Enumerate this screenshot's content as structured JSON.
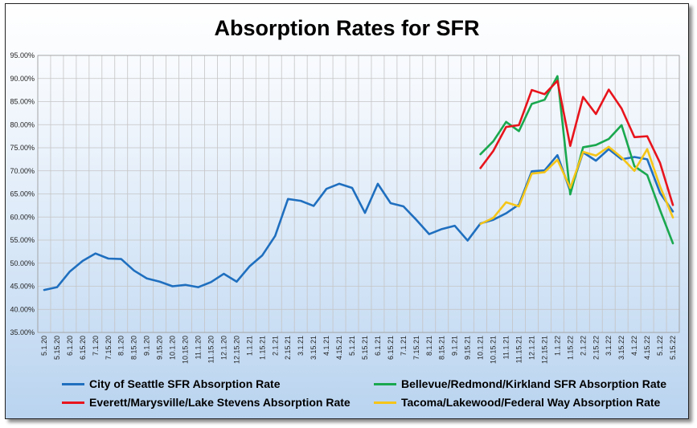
{
  "chart_data": {
    "type": "line",
    "title": "Absorption Rates for SFR",
    "xlabel": "",
    "ylabel": "",
    "ylim": [
      35,
      95
    ],
    "y_ticks": [
      "35.00%",
      "40.00%",
      "45.00%",
      "50.00%",
      "55.00%",
      "60.00%",
      "65.00%",
      "70.00%",
      "75.00%",
      "80.00%",
      "85.00%",
      "90.00%",
      "95.00%"
    ],
    "grid": true,
    "legend_position": "bottom",
    "categories": [
      "5.1.20",
      "5.15.20",
      "6.1.20",
      "6.15.20",
      "7.1.20",
      "7.15.20",
      "8.1.20",
      "8.15.20",
      "9.1.20",
      "9.15.20",
      "10.1.20",
      "10.15.20",
      "11.1.20",
      "11.15.20",
      "12.1.20",
      "12.15.20",
      "1.1.21",
      "1.15.21",
      "2.1.21",
      "2.15.21",
      "3.1.21",
      "3.15.21",
      "4.1.21",
      "4.15.21",
      "5.1.21",
      "5.15.21",
      "6.1.21",
      "6.15.21",
      "7.1.21",
      "7.15.21",
      "8.1.21",
      "8.15.21",
      "9.1.21",
      "9.15.21",
      "10.1.21",
      "10.15.21",
      "11.1.21",
      "11.15.21",
      "12.1.21",
      "12.15.21",
      "1.1.22",
      "1.15.22",
      "2.1.22",
      "2.15.22",
      "3.1.22",
      "3.15.22",
      "4.1.22",
      "4.15.22",
      "5.1.22",
      "5.15.22"
    ],
    "series": [
      {
        "name": "City of Seattle SFR Absorption Rate",
        "color": "#1f6fbf",
        "values": [
          44.2,
          44.8,
          48.2,
          50.5,
          52.1,
          51.0,
          50.9,
          48.4,
          46.7,
          46.0,
          45.0,
          45.3,
          44.8,
          45.9,
          47.7,
          46.0,
          49.3,
          51.7,
          55.9,
          63.9,
          63.5,
          62.4,
          66.1,
          67.2,
          66.3,
          60.9,
          67.2,
          63.0,
          62.3,
          59.4,
          56.3,
          57.4,
          58.1,
          54.9,
          58.6,
          59.4,
          60.8,
          62.7,
          69.9,
          70.1,
          73.4,
          65.6,
          74.0,
          72.2,
          74.7,
          72.5,
          73.0,
          72.5,
          65.2,
          61.2
        ]
      },
      {
        "name": "Bellevue/Redmond/Kirkland SFR Absorption Rate",
        "color": "#1aa84f",
        "values": [
          null,
          null,
          null,
          null,
          null,
          null,
          null,
          null,
          null,
          null,
          null,
          null,
          null,
          null,
          null,
          null,
          null,
          null,
          null,
          null,
          null,
          null,
          null,
          null,
          null,
          null,
          null,
          null,
          null,
          null,
          null,
          null,
          null,
          null,
          73.6,
          76.4,
          80.6,
          78.6,
          84.5,
          85.4,
          90.5,
          64.9,
          75.1,
          75.6,
          76.9,
          79.9,
          71.0,
          69.1,
          61.5,
          54.3
        ]
      },
      {
        "name": "Everett/Marysville/Lake Stevens Absorption Rate",
        "color": "#e8141c",
        "values": [
          null,
          null,
          null,
          null,
          null,
          null,
          null,
          null,
          null,
          null,
          null,
          null,
          null,
          null,
          null,
          null,
          null,
          null,
          null,
          null,
          null,
          null,
          null,
          null,
          null,
          null,
          null,
          null,
          null,
          null,
          null,
          null,
          null,
          null,
          70.6,
          74.3,
          79.5,
          79.9,
          87.5,
          86.6,
          89.5,
          75.4,
          86.0,
          82.3,
          87.6,
          83.5,
          77.3,
          77.5,
          71.7,
          62.6
        ]
      },
      {
        "name": "Tacoma/Lakewood/Federal Way Absorption Rate",
        "color": "#f5c518",
        "values": [
          null,
          null,
          null,
          null,
          null,
          null,
          null,
          null,
          null,
          null,
          null,
          null,
          null,
          null,
          null,
          null,
          null,
          null,
          null,
          null,
          null,
          null,
          null,
          null,
          null,
          null,
          null,
          null,
          null,
          null,
          null,
          null,
          null,
          null,
          58.5,
          59.8,
          63.2,
          62.3,
          69.4,
          69.7,
          72.4,
          66.3,
          74.1,
          73.3,
          75.2,
          72.9,
          70.0,
          74.7,
          66.6,
          59.9
        ]
      }
    ]
  }
}
